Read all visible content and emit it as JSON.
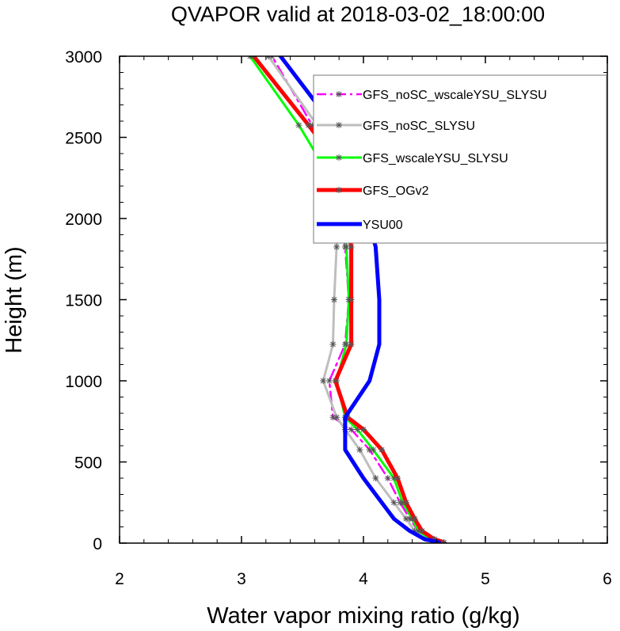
{
  "chart_data": {
    "type": "line",
    "title": "QVAPOR valid at 2018-03-02_18:00:00",
    "xlabel": "Water vapor mixing ratio (g/kg)",
    "ylabel": "Height (m)",
    "xlim": [
      2,
      6
    ],
    "ylim": [
      0,
      3000
    ],
    "x_ticks": [
      "2",
      "3",
      "4",
      "5",
      "6"
    ],
    "y_ticks": [
      "0",
      "500",
      "1000",
      "1500",
      "2000",
      "2500",
      "3000"
    ],
    "legend_position": "top-right",
    "series": [
      {
        "name": "GFS_noSC_wscaleYSU_SLYSU",
        "color": "#ff00ff",
        "style": "dashed",
        "markers": true,
        "points": [
          [
            4.63,
            5
          ],
          [
            4.55,
            25
          ],
          [
            4.45,
            75
          ],
          [
            4.38,
            150
          ],
          [
            4.3,
            250
          ],
          [
            4.2,
            400
          ],
          [
            4.05,
            575
          ],
          [
            3.9,
            700
          ],
          [
            3.75,
            775
          ],
          [
            3.72,
            1000
          ],
          [
            3.85,
            1225
          ],
          [
            3.88,
            1500
          ],
          [
            3.85,
            1825
          ],
          [
            3.78,
            2175
          ],
          [
            3.72,
            2375
          ],
          [
            3.58,
            2575
          ],
          [
            3.25,
            3000
          ]
        ]
      },
      {
        "name": "GFS_noSC_SLYSU",
        "color": "#bebebe",
        "style": "solid",
        "markers": true,
        "points": [
          [
            4.62,
            5
          ],
          [
            4.52,
            25
          ],
          [
            4.42,
            75
          ],
          [
            4.35,
            150
          ],
          [
            4.25,
            250
          ],
          [
            4.1,
            400
          ],
          [
            3.97,
            575
          ],
          [
            3.85,
            700
          ],
          [
            3.78,
            775
          ],
          [
            3.67,
            1000
          ],
          [
            3.75,
            1225
          ],
          [
            3.76,
            1500
          ],
          [
            3.78,
            1825
          ],
          [
            3.77,
            2175
          ],
          [
            3.7,
            2375
          ],
          [
            3.62,
            2575
          ],
          [
            3.22,
            3000
          ]
        ]
      },
      {
        "name": "GFS_wscaleYSU_SLYSU",
        "color": "#00ff00",
        "style": "solid",
        "markers": true,
        "points": [
          [
            4.64,
            5
          ],
          [
            4.55,
            25
          ],
          [
            4.45,
            75
          ],
          [
            4.4,
            150
          ],
          [
            4.32,
            250
          ],
          [
            4.25,
            400
          ],
          [
            4.08,
            575
          ],
          [
            3.95,
            700
          ],
          [
            3.85,
            775
          ],
          [
            3.78,
            1000
          ],
          [
            3.86,
            1225
          ],
          [
            3.88,
            1500
          ],
          [
            3.86,
            1825
          ],
          [
            3.8,
            2175
          ],
          [
            3.63,
            2375
          ],
          [
            3.47,
            2575
          ],
          [
            3.07,
            3000
          ]
        ]
      },
      {
        "name": "GFS_OGv2",
        "color": "#ff0000",
        "style": "solid",
        "markers": true,
        "points": [
          [
            4.66,
            5
          ],
          [
            4.58,
            25
          ],
          [
            4.48,
            75
          ],
          [
            4.42,
            150
          ],
          [
            4.35,
            250
          ],
          [
            4.28,
            400
          ],
          [
            4.15,
            575
          ],
          [
            4.0,
            700
          ],
          [
            3.87,
            775
          ],
          [
            3.77,
            1000
          ],
          [
            3.9,
            1225
          ],
          [
            3.9,
            1500
          ],
          [
            3.9,
            1825
          ],
          [
            3.84,
            2175
          ],
          [
            3.75,
            2375
          ],
          [
            3.55,
            2575
          ],
          [
            3.1,
            3000
          ]
        ]
      },
      {
        "name": "YSU00",
        "color": "#0000ff",
        "style": "solid",
        "markers": false,
        "points": [
          [
            4.62,
            5
          ],
          [
            4.5,
            25
          ],
          [
            4.38,
            75
          ],
          [
            4.25,
            150
          ],
          [
            4.15,
            250
          ],
          [
            4.0,
            400
          ],
          [
            3.85,
            575
          ],
          [
            3.85,
            775
          ],
          [
            4.05,
            1000
          ],
          [
            4.13,
            1225
          ],
          [
            4.13,
            1500
          ],
          [
            4.1,
            1825
          ],
          [
            4.0,
            2100
          ],
          [
            3.88,
            2375
          ],
          [
            3.75,
            2575
          ],
          [
            3.32,
            3000
          ]
        ]
      }
    ]
  }
}
